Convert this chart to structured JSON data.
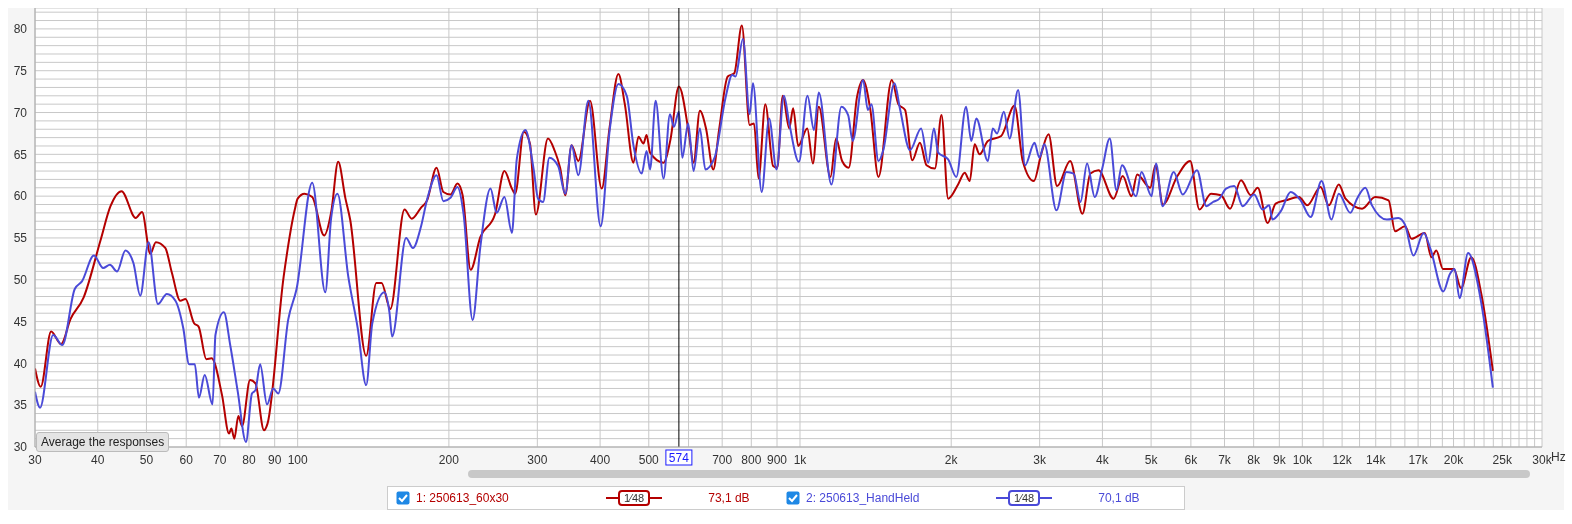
{
  "chart_data": {
    "type": "line",
    "xlim": [
      30,
      30000
    ],
    "ylim": [
      30,
      82.5
    ],
    "log": "x",
    "grid": true,
    "legend": "bottom",
    "marker": "none",
    "line_style": "solid",
    "xticks": [
      30,
      40,
      50,
      60,
      70,
      80,
      90,
      100,
      200,
      300,
      400,
      500,
      {
        "value": 600,
        "label": null
      },
      700,
      800,
      900,
      {
        "value": 1000,
        "label": "1k"
      },
      {
        "value": 2000,
        "label": "2k"
      },
      {
        "value": 3000,
        "label": "3k"
      },
      {
        "value": 4000,
        "label": "4k"
      },
      {
        "value": 5000,
        "label": "5k"
      },
      {
        "value": 6000,
        "label": "6k"
      },
      {
        "value": 7000,
        "label": "7k"
      },
      {
        "value": 8000,
        "label": "8k"
      },
      {
        "value": 9000,
        "label": "9k"
      },
      {
        "value": 10000,
        "label": "10k"
      },
      {
        "value": 11000,
        "label": null
      },
      {
        "value": 12000,
        "label": "12k"
      },
      {
        "value": 13000,
        "label": null
      },
      {
        "value": 14000,
        "label": "14k"
      },
      {
        "value": 15000,
        "label": null
      },
      {
        "value": 16000,
        "label": null
      },
      {
        "value": 17000,
        "label": "17k"
      },
      {
        "value": 18000,
        "label": null
      },
      {
        "value": 19000,
        "label": null
      },
      {
        "value": 20000,
        "label": "20k"
      },
      {
        "value": 21000,
        "label": null
      },
      {
        "value": 22000,
        "label": null
      },
      {
        "value": 23000,
        "label": null
      },
      {
        "value": 24000,
        "label": null
      },
      {
        "value": 25000,
        "label": "25k"
      },
      {
        "value": 26000,
        "label": null
      },
      {
        "value": 27000,
        "label": null
      },
      {
        "value": 28000,
        "label": null
      },
      {
        "value": 29000,
        "label": null
      },
      {
        "value": 30000,
        "label": "30k"
      }
    ],
    "xlabel": "Hz",
    "yticks": [
      30,
      {
        "value": 31,
        "label": null
      },
      {
        "value": 32,
        "label": null
      },
      {
        "value": 33,
        "label": null
      },
      {
        "value": 34,
        "label": null
      },
      35,
      {
        "value": 36,
        "label": null
      },
      {
        "value": 37,
        "label": null
      },
      {
        "value": 38,
        "label": null
      },
      {
        "value": 39,
        "label": null
      },
      40,
      {
        "value": 41,
        "label": null
      },
      {
        "value": 42,
        "label": null
      },
      {
        "value": 43,
        "label": null
      },
      {
        "value": 44,
        "label": null
      },
      45,
      {
        "value": 46,
        "label": null
      },
      {
        "value": 47,
        "label": null
      },
      {
        "value": 48,
        "label": null
      },
      {
        "value": 49,
        "label": null
      },
      50,
      {
        "value": 51,
        "label": null
      },
      {
        "value": 52,
        "label": null
      },
      {
        "value": 53,
        "label": null
      },
      {
        "value": 54,
        "label": null
      },
      55,
      {
        "value": 56,
        "label": null
      },
      {
        "value": 57,
        "label": null
      },
      {
        "value": 58,
        "label": null
      },
      {
        "value": 59,
        "label": null
      },
      60,
      {
        "value": 61,
        "label": null
      },
      {
        "value": 62,
        "label": null
      },
      {
        "value": 63,
        "label": null
      },
      {
        "value": 64,
        "label": null
      },
      65,
      {
        "value": 66,
        "label": null
      },
      {
        "value": 67,
        "label": null
      },
      {
        "value": 68,
        "label": null
      },
      {
        "value": 69,
        "label": null
      },
      70,
      {
        "value": 71,
        "label": null
      },
      {
        "value": 72,
        "label": null
      },
      {
        "value": 73,
        "label": null
      },
      {
        "value": 74,
        "label": null
      },
      75,
      {
        "value": 76,
        "label": null
      },
      {
        "value": 77,
        "label": null
      },
      {
        "value": 78,
        "label": null
      },
      {
        "value": 79,
        "label": null
      },
      80,
      {
        "value": 81,
        "label": null
      },
      {
        "value": 82,
        "label": null
      }
    ],
    "ref_lines": [
      {
        "axis": "x",
        "value": 574,
        "label": "574",
        "color": "#000000"
      }
    ],
    "annotations": [
      "Average the responses",
      "1⁄48",
      "73,1 dB",
      "1⁄48",
      "70,1 dB"
    ],
    "series": [
      {
        "name": "1: 250613_60x30",
        "color": "#b40000",
        "x": [
          30,
          30.8,
          32.3,
          33.8,
          35.3,
          37.5,
          40.5,
          42.4,
          44.6,
          47.6,
          49,
          50.9,
          52.2,
          54.5,
          56.2,
          58.4,
          59.8,
          62.2,
          63.5,
          65.8,
          67.4,
          70.7,
          73,
          73.8,
          74.8,
          76.2,
          77.5,
          80.4,
          82.4,
          85.7,
          87.1,
          93.8,
          98.7,
          100,
          103.2,
          106.9,
          112.9,
          116.7,
          120.4,
          124.5,
          127.2,
          136.9,
          143.4,
          146.9,
          152.9,
          163.2,
          168.7,
          175.9,
          181,
          189,
          195,
          201.5,
          208,
          213,
          221,
          231,
          247,
          258,
          267,
          271,
          282,
          290,
          298,
          315,
          325,
          333,
          341,
          351,
          362,
          382,
          403,
          418,
          435,
          448,
          466,
          477,
          488,
          495,
          503,
          535,
          552,
          574,
          601,
          614,
          632,
          650,
          672,
          690,
          718,
          740,
          766,
          794,
          810,
          827,
          853,
          884,
          901,
          924,
          952,
          969,
          992,
          1034,
          1061,
          1090,
          1150,
          1180,
          1213,
          1250,
          1299,
          1335,
          1380,
          1433,
          1523,
          1570,
          1619,
          1673,
          1733,
          1786,
          1856,
          1913,
          1972,
          2064,
          2128,
          2177,
          2227,
          2278,
          2366,
          2515,
          2673,
          2776,
          2921,
          3020,
          3125,
          3250,
          3450,
          3650,
          3785,
          3928,
          4210,
          4390,
          4570,
          4690,
          4980,
          5100,
          5280,
          5640,
          5980,
          6240,
          6580,
          6890,
          7180,
          7550,
          7900,
          8150,
          8530,
          8850,
          9270,
          9850,
          10230,
          10870,
          11290,
          11820,
          12190,
          13150,
          13970,
          14850,
          15300,
          16010,
          16500,
          17530,
          18070,
          18480,
          19050,
          20020,
          20700,
          21690,
          22730,
          23950
        ],
        "values": [
          39.4,
          37.2,
          43.8,
          42.3,
          45.3,
          47.9,
          54.7,
          58.8,
          60.6,
          57.4,
          58.1,
          53.1,
          54.5,
          53.8,
          50.8,
          47.5,
          47.7,
          44.8,
          44.4,
          40.5,
          40.6,
          36.2,
          31.6,
          32.2,
          31,
          33.7,
          32.5,
          38,
          37.6,
          32,
          32.8,
          50.4,
          58.4,
          59.7,
          60.3,
          59.9,
          55.3,
          58.2,
          64.1,
          59.7,
          57.2,
          40.9,
          49.6,
          49.6,
          46.5,
          58.4,
          57.3,
          58.6,
          59.5,
          63.4,
          60.5,
          60.2,
          61.5,
          60.1,
          51.2,
          55.1,
          57.8,
          63,
          60.9,
          60.3,
          67.7,
          66.3,
          57.8,
          66.9,
          65.4,
          63.4,
          60.1,
          66.1,
          64.2,
          71.4,
          60.9,
          68.3,
          74.6,
          71,
          64,
          67.1,
          66.3,
          67.3,
          65.2,
          64,
          66.7,
          73.1,
          67.5,
          64,
          70.2,
          68.1,
          63.2,
          67.9,
          74.3,
          74.7,
          80.4,
          68.5,
          68.7,
          62.1,
          71,
          63.6,
          63.4,
          72,
          68.1,
          70.5,
          66,
          68.1,
          63.9,
          70.7,
          62.3,
          66.9,
          64.2,
          63.4,
          71.9,
          73.9,
          70.4,
          62.3,
          73.9,
          71,
          70.3,
          64.3,
          66.4,
          63.7,
          63.3,
          69.7,
          59.7,
          61.4,
          62.8,
          61.8,
          66.2,
          65,
          66.6,
          67.2,
          70.8,
          64.2,
          61.8,
          65,
          67.4,
          61.2,
          64.2,
          57.9,
          62.7,
          63.1,
          59.7,
          62.4,
          60,
          62.6,
          61,
          63.7,
          59,
          62.4,
          64.2,
          58.4,
          60.3,
          60.1,
          58.5,
          61.9,
          60.1,
          61,
          56.8,
          59.1,
          59.5,
          59.9,
          58.9,
          61.1,
          58.9,
          61.4,
          59.7,
          58.5,
          59.9,
          59.5,
          55.8,
          56.4,
          54.9,
          55.6,
          52.7,
          53.5,
          51.3,
          51.3,
          49,
          52.7,
          48.2,
          39.1
        ]
      },
      {
        "name": "2: 250613_HandHeld",
        "color": "#4a4ad8",
        "x": [
          30,
          30.7,
          32.6,
          34,
          36,
          37.2,
          39.3,
          41,
          42.3,
          43.7,
          45.4,
          47.1,
          48.6,
          50.5,
          52.7,
          54.9,
          57.1,
          59.2,
          60.8,
          62.4,
          63.6,
          65.3,
          67.7,
          68.6,
          71.3,
          73.4,
          76,
          78.9,
          81.1,
          82.4,
          84.2,
          86.9,
          89.4,
          91.5,
          95.8,
          99.5,
          106.9,
          113.5,
          116.6,
          120,
          126.1,
          131.7,
          136.9,
          140.8,
          148.8,
          152.3,
          154.2,
          164.4,
          169.6,
          175.9,
          181,
          189,
          195,
          201.5,
          208,
          214,
          223,
          231,
          242,
          249,
          258,
          267,
          273,
          284,
          295,
          301,
          308,
          317,
          330,
          341,
          351,
          362,
          379,
          401,
          418,
          435,
          452,
          466,
          484,
          495,
          503,
          516,
          535,
          551,
          561,
          574,
          583,
          599,
          614,
          632,
          648,
          676,
          711,
          733,
          744,
          770,
          794,
          806,
          839,
          868,
          898,
          929,
          952,
          995,
          1035,
          1066,
          1090,
          1155,
          1209,
          1247,
          1273,
          1335,
          1365,
          1387,
          1433,
          1465,
          1542,
          1582,
          1656,
          1742,
          1800,
          1848,
          1884,
          1972,
          2047,
          2141,
          2193,
          2244,
          2366,
          2420,
          2468,
          2546,
          2614,
          2718,
          2806,
          2930,
          2995,
          3065,
          3240,
          3392,
          3507,
          3617,
          3728,
          3862,
          4000,
          4137,
          4265,
          4375,
          4667,
          4785,
          5010,
          5114,
          5271,
          5546,
          5780,
          6170,
          6440,
          6640,
          6840,
          7050,
          7320,
          7610,
          8020,
          8330,
          8590,
          8720,
          9060,
          9480,
          9920,
          10390,
          10920,
          11430,
          11820,
          12460,
          12850,
          13350,
          13760,
          14730,
          15530,
          16010,
          16640,
          17440,
          17990,
          19080,
          19670,
          20100,
          20560,
          21380,
          22730,
          23950
        ],
        "values": [
          36.6,
          34.7,
          43.4,
          42.2,
          48.9,
          49.8,
          52.9,
          51.4,
          51.8,
          51,
          53.5,
          52,
          48.1,
          54.5,
          47.1,
          48.3,
          47.5,
          44.2,
          39.9,
          39.9,
          35.9,
          38.6,
          35.1,
          43.4,
          46.1,
          42.2,
          36.6,
          30.6,
          36.4,
          36.8,
          39.9,
          35.1,
          37,
          36.4,
          45.3,
          48.9,
          61.6,
          48.5,
          57.4,
          60.3,
          50.4,
          44.2,
          37.4,
          44.8,
          48.5,
          46.1,
          43.2,
          55,
          53.8,
          56.3,
          59.6,
          62.5,
          59.4,
          59.8,
          61.1,
          57.8,
          45.2,
          53.9,
          60.9,
          58,
          59.9,
          55.6,
          64.4,
          67.9,
          63.2,
          59.7,
          59.3,
          64.6,
          63.6,
          60.3,
          66.1,
          62.5,
          71.4,
          56.4,
          67.9,
          73.4,
          72,
          66.1,
          62.7,
          65.4,
          63.2,
          71.4,
          62.1,
          69.8,
          68.3,
          70.1,
          64.6,
          68.7,
          63,
          68.1,
          63.2,
          64.6,
          71.8,
          74.5,
          74.3,
          78.8,
          69.8,
          73.5,
          60.5,
          69.3,
          63.2,
          72,
          68.7,
          64.1,
          72,
          67.9,
          72.4,
          61.4,
          70.7,
          69.7,
          66.6,
          73.9,
          70.3,
          71,
          64.2,
          65.5,
          73.5,
          70.4,
          65.5,
          68.1,
          64,
          68.1,
          65.2,
          64.4,
          62.3,
          70.7,
          66.6,
          69.3,
          64.2,
          68.1,
          67.5,
          70.1,
          66.9,
          72.7,
          63.7,
          66.4,
          64.6,
          66.2,
          58.3,
          62.9,
          62.7,
          59.3,
          63.9,
          59.9,
          63.4,
          66.9,
          60.7,
          63.7,
          60,
          62.9,
          60,
          63.9,
          58.8,
          62.9,
          60.2,
          63.1,
          58.8,
          59.3,
          59.7,
          60.9,
          61.2,
          58.8,
          60.2,
          58.4,
          58.9,
          57.2,
          58.2,
          60.5,
          59.5,
          57.5,
          61.8,
          57.2,
          60.3,
          58,
          59.7,
          61,
          58.9,
          57.2,
          57.4,
          56.6,
          52.9,
          55.6,
          53.7,
          48.6,
          50.7,
          51.3,
          47.8,
          53.2,
          47.1,
          37.1
        ]
      }
    ]
  }
}
